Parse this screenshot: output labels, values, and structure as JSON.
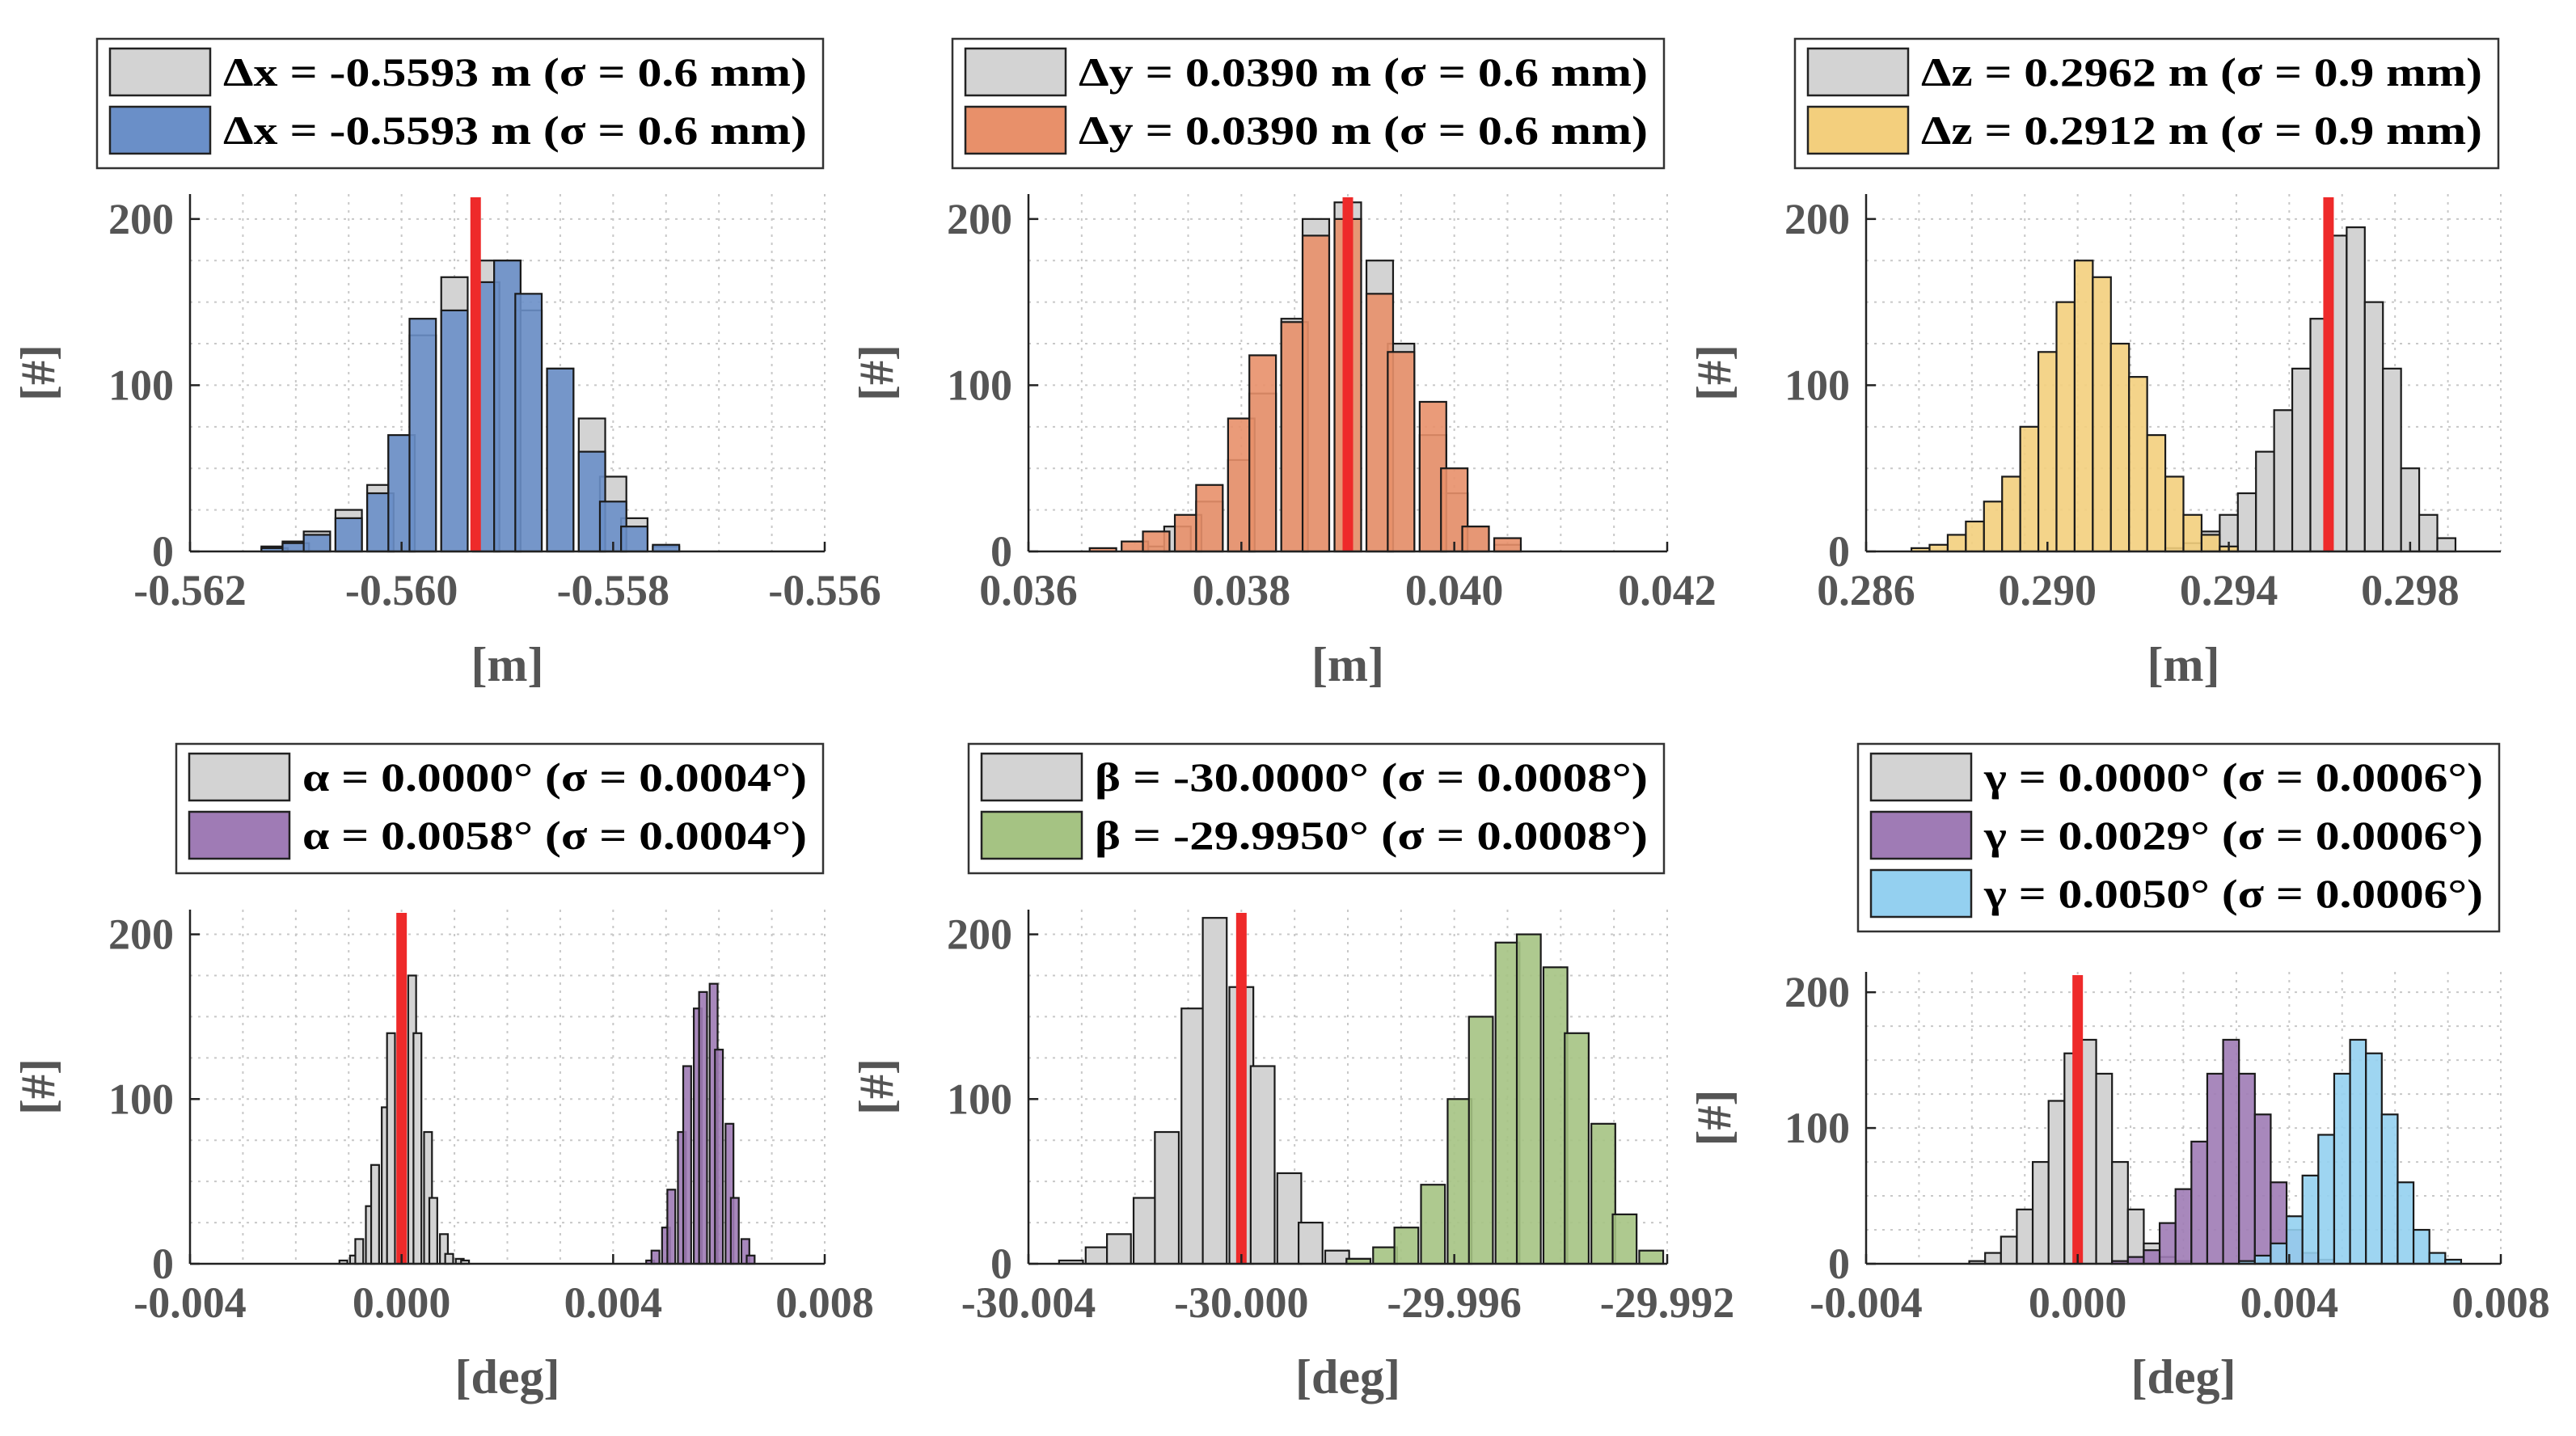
{
  "colors": {
    "reference": "#d3d3d3",
    "x": "#6a8fc8",
    "y": "#e8906a",
    "z": "#f3cf7d",
    "alpha": "#9f7bb5",
    "beta": "#a5c383",
    "gamma_purple": "#9f7bb5",
    "gamma_cyan": "#94d0f0",
    "truth_line": "#ee2a2a",
    "axis": "#222222",
    "grid": "#c8c8c8",
    "tick_text": "#555555"
  },
  "chart_data": [
    {
      "type": "histogram",
      "xlabel": "[m]",
      "ylabel": "[#]",
      "xlim": [
        -0.562,
        -0.556
      ],
      "ylim": [
        0,
        215
      ],
      "xticks": [
        -0.562,
        -0.56,
        -0.558,
        -0.556
      ],
      "xtick_labels": [
        "-0.562",
        "-0.560",
        "-0.558",
        "-0.556"
      ],
      "yticks": [
        0,
        100,
        200
      ],
      "ytick_labels": [
        "0",
        "100",
        "200"
      ],
      "bin_width": 0.00025,
      "truth_line": -0.5593,
      "legend": [
        "Δx = -0.5593 m (σ = 0.6 mm)",
        "Δx = -0.5593 m (σ = 0.6 mm)"
      ],
      "legend_placement": "above",
      "series": [
        {
          "color_key": "reference",
          "x": [
            -0.5612,
            -0.561,
            -0.5608,
            -0.5605,
            -0.5602,
            -0.56,
            -0.5598,
            -0.5595,
            -0.5592,
            -0.559,
            -0.5588,
            -0.5585,
            -0.5582,
            -0.558,
            -0.5578,
            -0.5575
          ],
          "values": [
            3,
            6,
            12,
            25,
            40,
            70,
            130,
            165,
            175,
            175,
            145,
            110,
            80,
            45,
            20,
            3
          ]
        },
        {
          "color_key": "x",
          "x": [
            -0.5612,
            -0.561,
            -0.5608,
            -0.5605,
            -0.5602,
            -0.56,
            -0.5598,
            -0.5595,
            -0.5592,
            -0.559,
            -0.5588,
            -0.5585,
            -0.5582,
            -0.558,
            -0.5578,
            -0.5575
          ],
          "values": [
            2,
            5,
            10,
            20,
            35,
            70,
            140,
            145,
            162,
            175,
            155,
            110,
            60,
            30,
            15,
            4
          ]
        }
      ]
    },
    {
      "type": "histogram",
      "xlabel": "[m]",
      "ylabel": "[#]",
      "xlim": [
        0.036,
        0.042
      ],
      "ylim": [
        0,
        215
      ],
      "xticks": [
        0.036,
        0.038,
        0.04,
        0.042
      ],
      "xtick_labels": [
        "0.036",
        "0.038",
        "0.040",
        "0.042"
      ],
      "yticks": [
        0,
        100,
        200
      ],
      "ytick_labels": [
        "0",
        "100",
        "200"
      ],
      "bin_width": 0.00025,
      "truth_line": 0.039,
      "legend": [
        "Δy = 0.0390 m (σ = 0.6 mm)",
        "Δy = 0.0390 m (σ = 0.6 mm)"
      ],
      "legend_placement": "above",
      "series": [
        {
          "color_key": "reference",
          "x": [
            0.0372,
            0.0374,
            0.0377,
            0.038,
            0.0382,
            0.0385,
            0.0387,
            0.039,
            0.0393,
            0.0395,
            0.0398,
            0.04,
            0.0402,
            0.0405
          ],
          "values": [
            3,
            15,
            30,
            55,
            95,
            140,
            200,
            210,
            175,
            125,
            70,
            35,
            15,
            4
          ]
        },
        {
          "color_key": "y",
          "x": [
            0.0367,
            0.037,
            0.0372,
            0.0375,
            0.0377,
            0.038,
            0.0382,
            0.0385,
            0.0387,
            0.039,
            0.0393,
            0.0395,
            0.0398,
            0.04,
            0.0402,
            0.0405
          ],
          "values": [
            2,
            6,
            12,
            22,
            40,
            80,
            118,
            138,
            190,
            200,
            155,
            120,
            90,
            50,
            15,
            8
          ]
        }
      ]
    },
    {
      "type": "histogram",
      "xlabel": "[m]",
      "ylabel": "[#]",
      "xlim": [
        0.286,
        0.3
      ],
      "ylim": [
        0,
        215
      ],
      "xticks": [
        0.286,
        0.29,
        0.294,
        0.298
      ],
      "xtick_labels": [
        "0.286",
        "0.290",
        "0.294",
        "0.298"
      ],
      "yticks": [
        0,
        100,
        200
      ],
      "ytick_labels": [
        "0",
        "100",
        "200"
      ],
      "bin_width": 0.0004,
      "truth_line": 0.2962,
      "legend": [
        "Δz = 0.2962 m (σ = 0.9 mm)",
        "Δz = 0.2912 m (σ = 0.9 mm)"
      ],
      "legend_placement": "above",
      "series": [
        {
          "color_key": "reference",
          "x": [
            0.2928,
            0.2932,
            0.2936,
            0.294,
            0.2944,
            0.2948,
            0.2952,
            0.2956,
            0.296,
            0.2964,
            0.2968,
            0.2972,
            0.2976,
            0.298,
            0.2984,
            0.2988
          ],
          "values": [
            2,
            5,
            12,
            22,
            35,
            60,
            85,
            110,
            140,
            190,
            195,
            150,
            110,
            50,
            22,
            8
          ]
        },
        {
          "color_key": "z",
          "x": [
            0.2872,
            0.2876,
            0.288,
            0.2884,
            0.2888,
            0.2892,
            0.2896,
            0.29,
            0.2904,
            0.2908,
            0.2912,
            0.2916,
            0.292,
            0.2924,
            0.2928,
            0.2932,
            0.2936,
            0.294
          ],
          "values": [
            2,
            4,
            10,
            18,
            30,
            45,
            75,
            120,
            150,
            175,
            165,
            125,
            105,
            70,
            45,
            22,
            10,
            3
          ]
        }
      ]
    },
    {
      "type": "histogram",
      "xlabel": "[deg]",
      "ylabel": "[#]",
      "xlim": [
        -0.004,
        0.008
      ],
      "ylim": [
        0,
        215
      ],
      "xticks": [
        -0.004,
        0,
        0.004,
        0.008
      ],
      "xtick_labels": [
        "-0.004",
        "0.000",
        "0.004",
        "0.008"
      ],
      "yticks": [
        0,
        100,
        200
      ],
      "ytick_labels": [
        "0",
        "100",
        "200"
      ],
      "bin_width": 0.00015,
      "truth_line": 0.0,
      "legend": [
        "α = 0.0000° (σ = 0.0004°)",
        "α = 0.0058° (σ = 0.0004°)"
      ],
      "legend_placement": "above",
      "series": [
        {
          "color_key": "reference",
          "x": [
            -0.0011,
            -0.0009,
            -0.0008,
            -0.0006,
            -0.0005,
            -0.0003,
            -0.0002,
            0.0,
            0.0002,
            0.0003,
            0.0005,
            0.0006,
            0.0008,
            0.0009,
            0.0011,
            0.0012
          ],
          "values": [
            2,
            5,
            15,
            35,
            60,
            95,
            140,
            180,
            175,
            140,
            80,
            40,
            18,
            6,
            3,
            2
          ]
        },
        {
          "color_key": "alpha",
          "x": [
            0.0047,
            0.0048,
            0.005,
            0.0051,
            0.0053,
            0.0054,
            0.0056,
            0.0057,
            0.0059,
            0.006,
            0.0062,
            0.0063,
            0.0065,
            0.0066
          ],
          "values": [
            2,
            8,
            22,
            45,
            80,
            120,
            155,
            165,
            170,
            130,
            85,
            40,
            15,
            5
          ]
        }
      ]
    },
    {
      "type": "histogram",
      "xlabel": "[deg]",
      "ylabel": "[#]",
      "xlim": [
        -30.004,
        -29.992
      ],
      "ylim": [
        0,
        215
      ],
      "xticks": [
        -30.004,
        -30.0,
        -29.996,
        -29.992
      ],
      "xtick_labels": [
        "-30.004",
        "-30.000",
        "-29.996",
        "-29.992"
      ],
      "yticks": [
        0,
        100,
        200
      ],
      "ytick_labels": [
        "0",
        "100",
        "200"
      ],
      "bin_width": 0.00045,
      "truth_line": -30.0,
      "legend": [
        "β = -30.0000° (σ = 0.0008°)",
        "β = -29.9950° (σ = 0.0008°)"
      ],
      "legend_placement": "above",
      "series": [
        {
          "color_key": "reference",
          "x": [
            -30.0032,
            -30.0027,
            -30.0023,
            -30.0018,
            -30.0014,
            -30.0009,
            -30.0005,
            -30.0,
            -29.9996,
            -29.9991,
            -29.9987,
            -29.9982,
            -29.9978
          ],
          "values": [
            2,
            10,
            18,
            40,
            80,
            155,
            210,
            168,
            120,
            55,
            25,
            8,
            3
          ]
        },
        {
          "color_key": "beta",
          "x": [
            -29.9978,
            -29.9973,
            -29.9969,
            -29.9964,
            -29.9959,
            -29.9955,
            -29.995,
            -29.9946,
            -29.9941,
            -29.9937,
            -29.9932,
            -29.9928,
            -29.9923
          ],
          "values": [
            3,
            10,
            22,
            48,
            100,
            150,
            195,
            200,
            180,
            140,
            85,
            30,
            8
          ]
        }
      ]
    },
    {
      "type": "histogram",
      "xlabel": "[deg]",
      "ylabel": "[#]",
      "xlim": [
        -0.004,
        0.008
      ],
      "ylim": [
        0,
        215
      ],
      "xticks": [
        -0.004,
        0,
        0.004,
        0.008
      ],
      "xtick_labels": [
        "-0.004",
        "0.000",
        "0.004",
        "0.008"
      ],
      "yticks": [
        0,
        100,
        200
      ],
      "ytick_labels": [
        "0",
        "100",
        "200"
      ],
      "bin_width": 0.0003,
      "truth_line": 0.0,
      "legend": [
        "γ = 0.0000° (σ = 0.0006°)",
        "γ = 0.0029° (σ = 0.0006°)",
        "γ = 0.0050° (σ = 0.0006°)"
      ],
      "legend_placement": "above",
      "series": [
        {
          "color_key": "reference",
          "x": [
            -0.0019,
            -0.0016,
            -0.0013,
            -0.001,
            -0.0007,
            -0.0004,
            -0.0001,
            0.0002,
            0.0005,
            0.0008,
            0.0011,
            0.0014,
            0.0017,
            0.002
          ],
          "values": [
            2,
            8,
            20,
            40,
            75,
            120,
            155,
            165,
            140,
            75,
            40,
            15,
            5,
            2
          ]
        },
        {
          "color_key": "gamma_purple",
          "x": [
            0.0008,
            0.0011,
            0.0014,
            0.0017,
            0.002,
            0.0023,
            0.0026,
            0.0029,
            0.0032,
            0.0035,
            0.0038,
            0.0041,
            0.0044,
            0.0047
          ],
          "values": [
            2,
            5,
            10,
            30,
            55,
            90,
            140,
            165,
            140,
            110,
            60,
            25,
            8,
            3
          ]
        },
        {
          "color_key": "gamma_cyan",
          "x": [
            0.0032,
            0.0035,
            0.0038,
            0.0041,
            0.0044,
            0.0047,
            0.005,
            0.0053,
            0.0056,
            0.0059,
            0.0062,
            0.0065,
            0.0068,
            0.0071
          ],
          "values": [
            2,
            6,
            15,
            35,
            65,
            95,
            140,
            165,
            155,
            110,
            60,
            25,
            8,
            3
          ]
        }
      ]
    }
  ]
}
